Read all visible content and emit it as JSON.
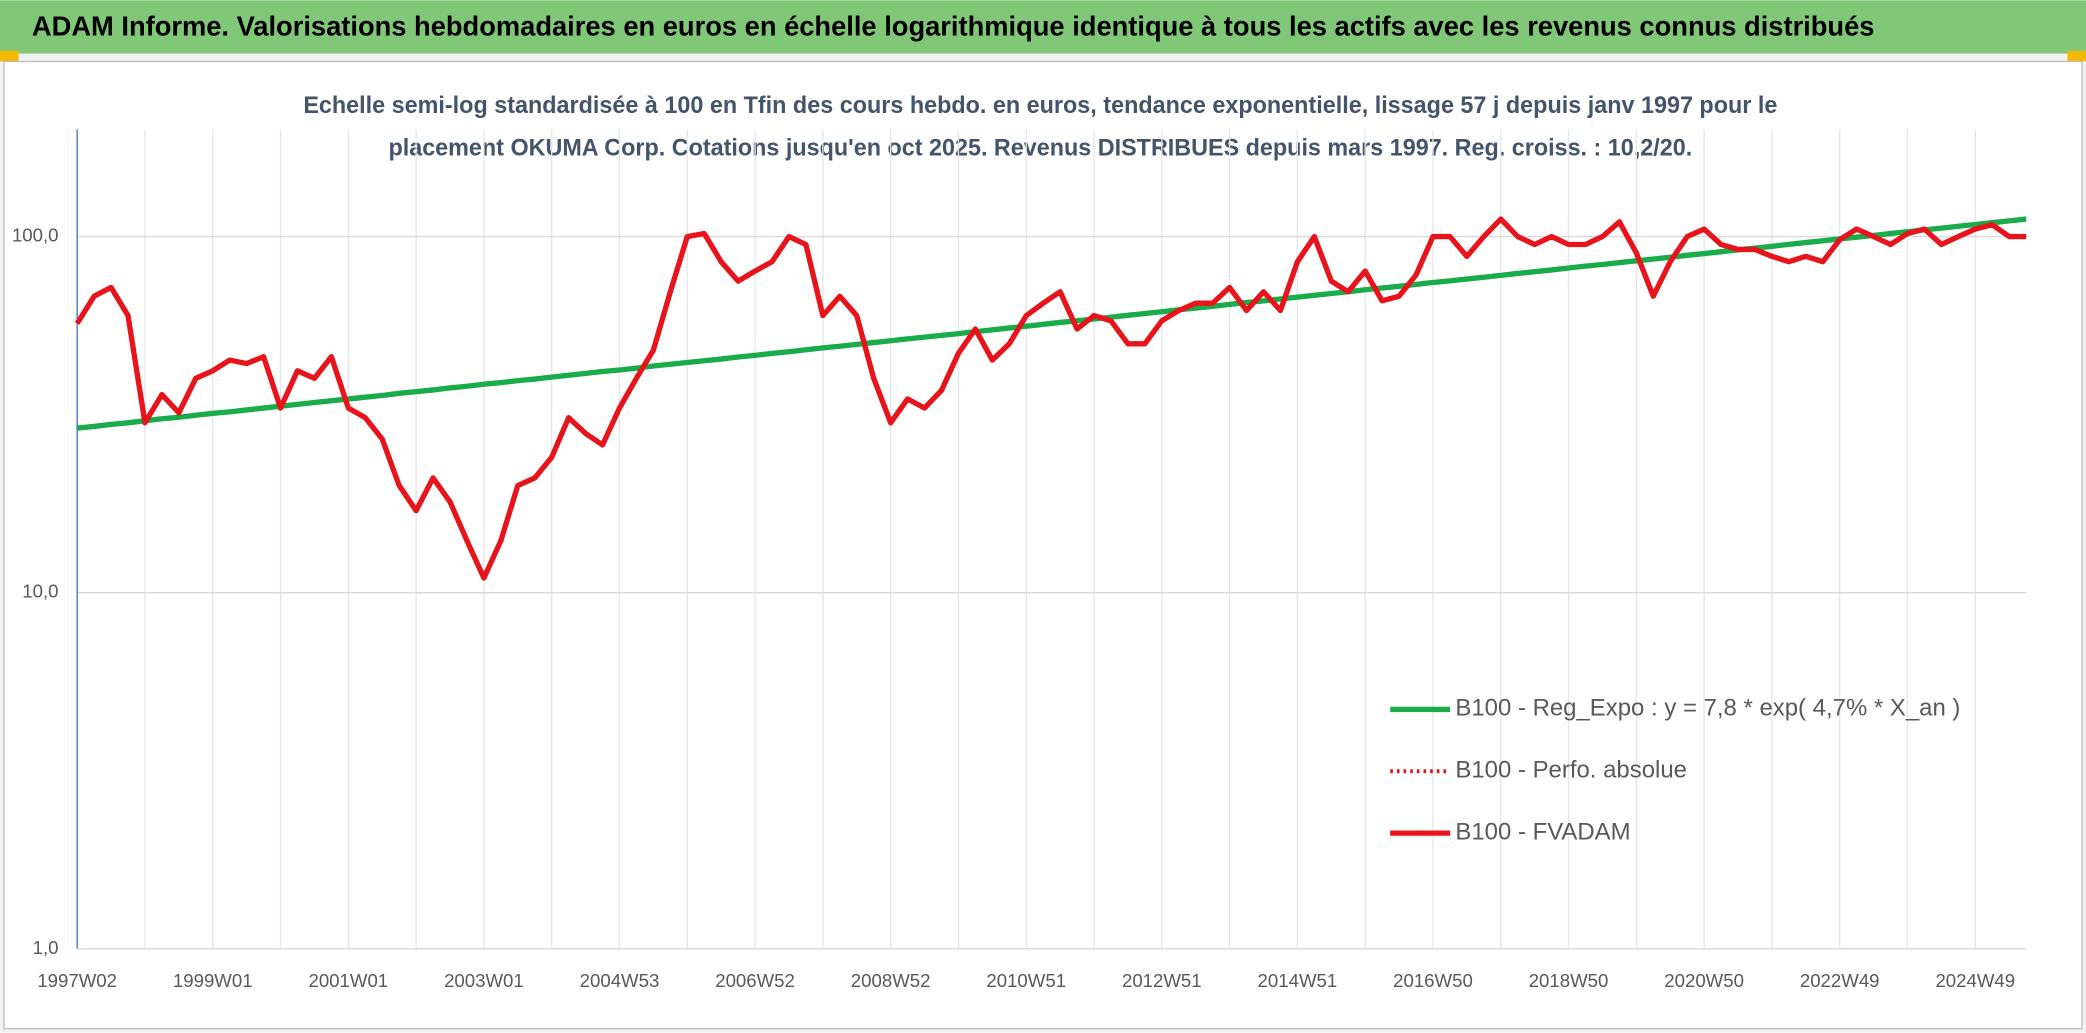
{
  "chart_data": {
    "type": "line",
    "title": "ADAM Informe. Valorisations hebdomadaires en euros en échelle logarithmique identique à tous les actifs avec les revenus connus distribués",
    "subtitle": [
      "Echelle semi-log standardisée à 100 en Tfin des cours hebdo. en euros, tendance exponentielle, lissage 57 j depuis janv 1997 pour le",
      "placement OKUMA Corp. Cotations jusqu'en oct 2025. Revenus DISTRIBUES depuis mars 1997. Reg. croiss. : 10,2/20."
    ],
    "log_scale": true,
    "grid": true,
    "legend_position": "right",
    "ylim": [
      1,
      200
    ],
    "yticks": [
      {
        "value": 1,
        "label": "1,0"
      },
      {
        "value": 10,
        "label": "10,0"
      },
      {
        "value": 100,
        "label": "100,0"
      }
    ],
    "categories": [
      "1997W02",
      null,
      null,
      null,
      null,
      null,
      null,
      null,
      "1999W01",
      null,
      null,
      null,
      null,
      null,
      null,
      null,
      "2001W01",
      null,
      null,
      null,
      null,
      null,
      null,
      null,
      "2003W01",
      null,
      null,
      null,
      null,
      null,
      null,
      null,
      "2004W53",
      null,
      null,
      null,
      null,
      null,
      null,
      null,
      "2006W52",
      null,
      null,
      null,
      null,
      null,
      null,
      null,
      "2008W52",
      null,
      null,
      null,
      null,
      null,
      null,
      null,
      "2010W51",
      null,
      null,
      null,
      null,
      null,
      null,
      null,
      "2012W51",
      null,
      null,
      null,
      null,
      null,
      null,
      null,
      "2014W51",
      null,
      null,
      null,
      null,
      null,
      null,
      null,
      "2016W50",
      null,
      null,
      null,
      null,
      null,
      null,
      null,
      "2018W50",
      null,
      null,
      null,
      null,
      null,
      null,
      null,
      "2020W50",
      null,
      null,
      null,
      null,
      null,
      null,
      null,
      "2022W49",
      null,
      null,
      null,
      null,
      null,
      null,
      null,
      "2024W49",
      null,
      null,
      null
    ],
    "series": [
      {
        "name": "B100 - Reg_Expo : y = 7,8 * exp( 4,7% *  X_an )",
        "color": "#1aab4b",
        "style": "solid",
        "values": [
          29.0,
          29.3,
          29.7,
          30.0,
          30.4,
          30.8,
          31.1,
          31.5,
          31.9,
          32.2,
          32.6,
          33.0,
          33.4,
          33.8,
          34.2,
          34.6,
          35.0,
          35.4,
          35.8,
          36.3,
          36.7,
          37.1,
          37.6,
          38.0,
          38.5,
          38.9,
          39.4,
          39.8,
          40.3,
          40.8,
          41.3,
          41.8,
          42.2,
          42.7,
          43.3,
          43.8,
          44.3,
          44.8,
          45.3,
          45.9,
          46.4,
          47.0,
          47.5,
          48.1,
          48.7,
          49.2,
          49.8,
          50.4,
          51.0,
          51.6,
          52.2,
          52.8,
          53.4,
          54.1,
          54.7,
          55.4,
          56.0,
          56.7,
          57.4,
          58.0,
          58.7,
          59.4,
          60.1,
          60.8,
          61.5,
          62.3,
          63.0,
          63.7,
          64.5,
          65.3,
          66.0,
          66.8,
          67.6,
          68.4,
          69.2,
          70.0,
          70.9,
          71.7,
          72.5,
          73.4,
          74.3,
          75.1,
          76.0,
          76.9,
          77.8,
          78.8,
          79.7,
          80.6,
          81.6,
          82.6,
          83.5,
          84.5,
          85.5,
          86.5,
          87.5,
          88.6,
          89.6,
          90.7,
          91.8,
          92.8,
          93.9,
          95.1,
          96.2,
          97.3,
          98.5,
          99.6,
          100.8,
          102.0,
          103.2,
          104.4,
          105.6,
          106.9,
          108.1,
          109.4,
          110.7,
          112.0
        ]
      },
      {
        "name": "B100 - Perfo. absolue",
        "color": "#e8141b",
        "style": "dotted",
        "values": [
          57,
          68,
          72,
          60,
          30,
          36,
          32,
          40,
          42,
          45,
          44,
          46,
          33,
          42,
          40,
          46,
          33,
          31,
          27,
          20,
          17,
          21,
          18,
          14,
          11,
          14,
          20,
          21,
          24,
          31,
          28,
          26,
          33,
          40,
          48,
          70,
          100,
          102,
          85,
          75,
          80,
          85,
          100,
          95,
          60,
          68,
          60,
          40,
          30,
          35,
          33,
          37,
          47,
          55,
          45,
          50,
          60,
          65,
          70,
          55,
          60,
          58,
          50,
          50,
          58,
          62,
          65,
          65,
          72,
          62,
          70,
          62,
          85,
          100,
          75,
          70,
          80,
          66,
          68,
          78,
          100,
          100,
          88,
          100,
          112,
          100,
          95,
          100,
          95,
          95,
          100,
          110,
          90,
          68,
          85,
          100,
          105,
          95,
          92,
          92,
          88,
          85,
          88,
          85,
          98,
          105,
          100,
          95,
          102,
          105,
          95,
          100,
          105,
          108,
          100,
          100
        ]
      },
      {
        "name": "B100 - FVADAM",
        "color": "#e8141b",
        "style": "solid",
        "values": [
          57,
          68,
          72,
          60,
          30,
          36,
          32,
          40,
          42,
          45,
          44,
          46,
          33,
          42,
          40,
          46,
          33,
          31,
          27,
          20,
          17,
          21,
          18,
          14,
          11,
          14,
          20,
          21,
          24,
          31,
          28,
          26,
          33,
          40,
          48,
          70,
          100,
          102,
          85,
          75,
          80,
          85,
          100,
          95,
          60,
          68,
          60,
          40,
          30,
          35,
          33,
          37,
          47,
          55,
          45,
          50,
          60,
          65,
          70,
          55,
          60,
          58,
          50,
          50,
          58,
          62,
          65,
          65,
          72,
          62,
          70,
          62,
          85,
          100,
          75,
          70,
          80,
          66,
          68,
          78,
          100,
          100,
          88,
          100,
          112,
          100,
          95,
          100,
          95,
          95,
          100,
          110,
          90,
          68,
          85,
          100,
          105,
          95,
          92,
          92,
          88,
          85,
          88,
          85,
          98,
          105,
          100,
          95,
          102,
          105,
          95,
          100,
          105,
          108,
          100,
          100
        ]
      }
    ]
  }
}
